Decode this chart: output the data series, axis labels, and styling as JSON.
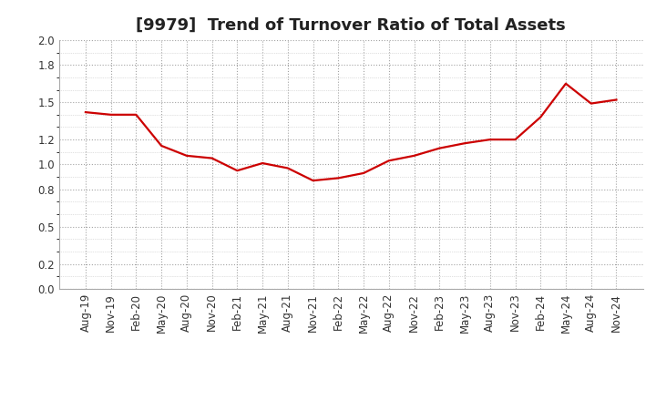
{
  "title": "[9979]  Trend of Turnover Ratio of Total Assets",
  "x_labels": [
    "Aug-19",
    "Nov-19",
    "Feb-20",
    "May-20",
    "Aug-20",
    "Nov-20",
    "Feb-21",
    "May-21",
    "Aug-21",
    "Nov-21",
    "Feb-22",
    "May-22",
    "Aug-22",
    "Nov-22",
    "Feb-23",
    "May-23",
    "Aug-23",
    "Nov-23",
    "Feb-24",
    "May-24",
    "Aug-24",
    "Nov-24"
  ],
  "y_values": [
    1.42,
    1.4,
    1.4,
    1.15,
    1.07,
    1.05,
    0.95,
    1.01,
    0.97,
    0.87,
    0.89,
    0.93,
    1.03,
    1.07,
    1.13,
    1.17,
    1.2,
    1.2,
    1.38,
    1.65,
    1.49,
    1.52
  ],
  "ylim": [
    0.0,
    2.0
  ],
  "yticks": [
    0.0,
    0.2,
    0.5,
    0.8,
    1.0,
    1.2,
    1.5,
    1.8,
    2.0
  ],
  "line_color": "#cc0000",
  "line_width": 1.6,
  "bg_color": "#ffffff",
  "plot_bg_color": "#ffffff",
  "grid_color": "#999999",
  "title_fontsize": 13,
  "tick_fontsize": 8.5,
  "title_color": "#222222"
}
